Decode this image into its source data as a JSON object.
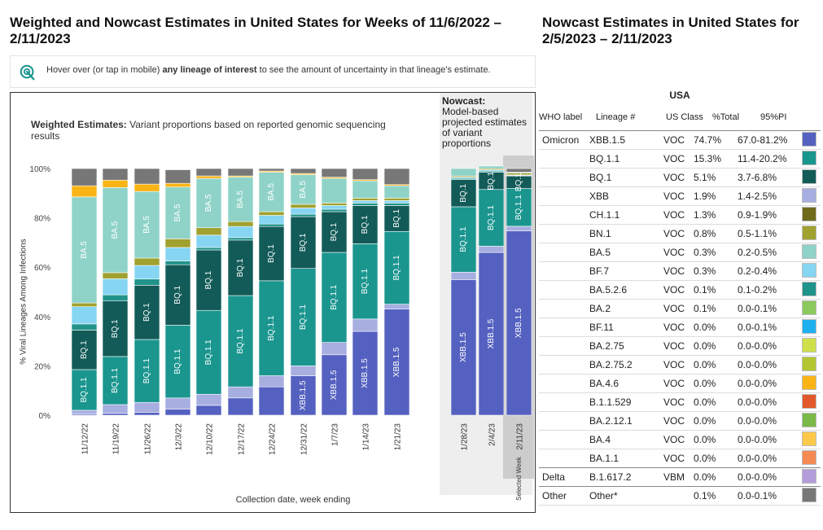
{
  "left_title": "Weighted and Nowcast Estimates in United States for Weeks of 11/6/2022 – 2/11/2023",
  "right_title": "Nowcast Estimates in United States for 2/5/2023 – 2/11/2023",
  "hover_note": {
    "prefix": "Hover over (or tap in mobile) ",
    "bold": "any lineage of interest",
    "suffix": " to see the amount of uncertainty in that lineage's estimate.",
    "icon": "pointer-icon"
  },
  "weighted_title_bold": "Weighted Estimates:",
  "weighted_title_rest": " Variant proportions based on reported genomic sequencing results",
  "nowcast_title_bold": "Nowcast:",
  "nowcast_title_rest": "Model-based projected estimates of variant proportions",
  "selected_week_label": "Selected Week",
  "chart_data": {
    "type": "bar",
    "stacked": true,
    "ylabel": "% Viral Lineages Among Infections",
    "xlabel": "Collection date, week ending",
    "ylim": [
      0,
      100
    ],
    "yticks": [
      "0%",
      "20%",
      "40%",
      "60%",
      "80%",
      "100%"
    ],
    "categories": [
      "11/12/22",
      "11/19/22",
      "11/26/22",
      "12/3/22",
      "12/10/22",
      "12/17/22",
      "12/24/22",
      "12/31/22",
      "1/7/23",
      "1/14/23",
      "1/21/23",
      "1/28/23",
      "2/4/23",
      "2/11/23"
    ],
    "nowcast_categories": [
      "1/28/23",
      "2/4/23",
      "2/11/23"
    ],
    "selected_category": "2/11/23",
    "series": [
      {
        "name": "XBB.1.5",
        "color": "#5561c0",
        "values": [
          0.5,
          0.8,
          1.2,
          2.5,
          4,
          7,
          11.5,
          16,
          24.5,
          34,
          43,
          55,
          66,
          74.7
        ]
      },
      {
        "name": "XBB",
        "color": "#a7aee0",
        "values": [
          1.5,
          3.5,
          4,
          4.5,
          4.5,
          4.5,
          4.5,
          4,
          5,
          5,
          2,
          3,
          2.5,
          1.9
        ]
      },
      {
        "name": "BQ.1.1",
        "color": "#1a968f",
        "values": [
          16.5,
          19.5,
          25.5,
          29.5,
          34,
          37,
          38.5,
          39.5,
          36.5,
          30.5,
          29.5,
          26.5,
          23,
          15.3
        ]
      },
      {
        "name": "BQ.1",
        "color": "#125b58",
        "values": [
          16,
          22.5,
          22,
          24.5,
          24.5,
          22.5,
          22,
          21,
          16.5,
          15.5,
          10.5,
          11,
          7,
          5.1
        ]
      },
      {
        "name": "BA.5.2.6",
        "color": "#20938a",
        "values": [
          2.5,
          2.5,
          2.5,
          1.5,
          1,
          1,
          1,
          1,
          1,
          1,
          1,
          0.5,
          0.5,
          0.1
        ]
      },
      {
        "name": "BF.7",
        "color": "#86d5f2",
        "values": [
          7,
          6.5,
          5.5,
          5.5,
          5,
          4.5,
          3.5,
          2.5,
          1.5,
          1,
          1,
          0.5,
          0.5,
          0.3
        ]
      },
      {
        "name": "BN.1",
        "color": "#a0a12f",
        "values": [
          1.5,
          2.5,
          3,
          3.5,
          3,
          2,
          1.5,
          1.5,
          1,
          1,
          1,
          0.5,
          0.5,
          0.8
        ]
      },
      {
        "name": "BA.5",
        "color": "#8fd3c8",
        "values": [
          43,
          34.5,
          27,
          21,
          20,
          18,
          16,
          12,
          10,
          7,
          5,
          3,
          1,
          0.3
        ]
      },
      {
        "name": "BA.4.6",
        "color": "#fab416",
        "values": [
          4.5,
          3,
          3,
          1.5,
          1,
          0.5,
          0.5,
          0.5,
          0.5,
          0.5,
          0.5,
          0,
          0,
          0
        ]
      },
      {
        "name": "Other",
        "color": "#777777",
        "values": [
          7,
          4.7,
          6.3,
          5.5,
          3,
          3,
          1,
          2,
          3.5,
          4.5,
          6.5,
          0,
          0,
          1.5
        ]
      }
    ],
    "bar_labels": [
      {
        "series": "BA.5",
        "text": "BA.5",
        "cats": [
          0,
          1,
          2,
          3,
          4,
          5,
          6,
          7
        ]
      },
      {
        "series": "BQ.1",
        "text": "BQ.1",
        "cats": [
          0,
          1,
          2,
          3,
          4,
          5,
          6,
          7,
          8,
          9,
          10,
          11,
          12,
          13
        ]
      },
      {
        "series": "BQ.1.1",
        "text": "BQ.1.1",
        "cats": [
          0,
          1,
          2,
          3,
          4,
          5,
          6,
          7,
          8,
          9,
          10,
          11,
          12,
          13
        ]
      },
      {
        "series": "XBB.1.5",
        "text": "XBB.1.5",
        "cats": [
          7,
          8,
          9,
          10,
          11,
          12,
          13
        ]
      }
    ]
  },
  "table": {
    "region": "USA",
    "headers": {
      "who": "WHO label",
      "lineage": "Lineage #",
      "us_class": "US Class",
      "total": "%Total",
      "pi": "95%PI"
    },
    "rows": [
      {
        "who": "Omicron",
        "lineage": "XBB.1.5",
        "us_class": "VOC",
        "total": "74.7%",
        "pi": "67.0-81.2%",
        "color": "#5561c0"
      },
      {
        "who": "",
        "lineage": "BQ.1.1",
        "us_class": "VOC",
        "total": "15.3%",
        "pi": "11.4-20.2%",
        "color": "#1a968f"
      },
      {
        "who": "",
        "lineage": "BQ.1",
        "us_class": "VOC",
        "total": "5.1%",
        "pi": "3.7-6.8%",
        "color": "#125b58"
      },
      {
        "who": "",
        "lineage": "XBB",
        "us_class": "VOC",
        "total": "1.9%",
        "pi": "1.4-2.5%",
        "color": "#a7aee0"
      },
      {
        "who": "",
        "lineage": "CH.1.1",
        "us_class": "VOC",
        "total": "1.3%",
        "pi": "0.9-1.9%",
        "color": "#6f6a1c"
      },
      {
        "who": "",
        "lineage": "BN.1",
        "us_class": "VOC",
        "total": "0.8%",
        "pi": "0.5-1.1%",
        "color": "#a0a12f"
      },
      {
        "who": "",
        "lineage": "BA.5",
        "us_class": "VOC",
        "total": "0.3%",
        "pi": "0.2-0.5%",
        "color": "#8fd3c8"
      },
      {
        "who": "",
        "lineage": "BF.7",
        "us_class": "VOC",
        "total": "0.3%",
        "pi": "0.2-0.4%",
        "color": "#86d5f2"
      },
      {
        "who": "",
        "lineage": "BA.5.2.6",
        "us_class": "VOC",
        "total": "0.1%",
        "pi": "0.1-0.2%",
        "color": "#20938a"
      },
      {
        "who": "",
        "lineage": "BA.2",
        "us_class": "VOC",
        "total": "0.1%",
        "pi": "0.0-0.1%",
        "color": "#8cc95c"
      },
      {
        "who": "",
        "lineage": "BF.11",
        "us_class": "VOC",
        "total": "0.0%",
        "pi": "0.0-0.1%",
        "color": "#1fb0f0"
      },
      {
        "who": "",
        "lineage": "BA.2.75",
        "us_class": "VOC",
        "total": "0.0%",
        "pi": "0.0-0.0%",
        "color": "#cfe04a"
      },
      {
        "who": "",
        "lineage": "BA.2.75.2",
        "us_class": "VOC",
        "total": "0.0%",
        "pi": "0.0-0.0%",
        "color": "#b3c632"
      },
      {
        "who": "",
        "lineage": "BA.4.6",
        "us_class": "VOC",
        "total": "0.0%",
        "pi": "0.0-0.0%",
        "color": "#fab416"
      },
      {
        "who": "",
        "lineage": "B.1.1.529",
        "us_class": "VOC",
        "total": "0.0%",
        "pi": "0.0-0.0%",
        "color": "#e1592a"
      },
      {
        "who": "",
        "lineage": "BA.2.12.1",
        "us_class": "VOC",
        "total": "0.0%",
        "pi": "0.0-0.0%",
        "color": "#7ab848"
      },
      {
        "who": "",
        "lineage": "BA.4",
        "us_class": "VOC",
        "total": "0.0%",
        "pi": "0.0-0.0%",
        "color": "#fcc84a"
      },
      {
        "who": "",
        "lineage": "BA.1.1",
        "us_class": "VOC",
        "total": "0.0%",
        "pi": "0.0-0.0%",
        "color": "#f58a53"
      },
      {
        "who": "Delta",
        "lineage": "B.1.617.2",
        "us_class": "VBM",
        "total": "0.0%",
        "pi": "0.0-0.0%",
        "color": "#b39ddb"
      },
      {
        "who": "Other",
        "lineage": "Other*",
        "us_class": "",
        "total": "0.1%",
        "pi": "0.0-0.1%",
        "color": "#777777"
      }
    ]
  }
}
